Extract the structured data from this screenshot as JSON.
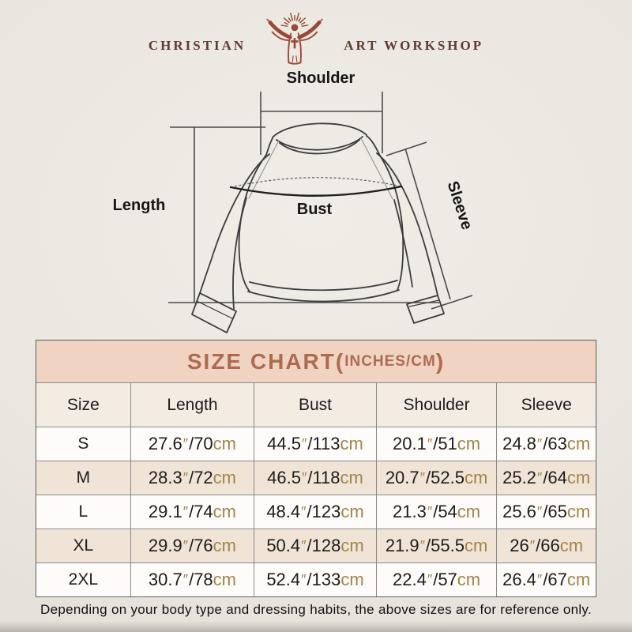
{
  "brand": {
    "left": "CHRISTIAN",
    "right": "ART WORKSHOP"
  },
  "diagram": {
    "shoulder": "Shoulder",
    "length": "Length",
    "bust": "Bust",
    "sleeve": "Sleeve"
  },
  "size_chart": {
    "title_main": "SIZE CHART(",
    "title_units": "INCHES/CM",
    "title_close": ")",
    "columns": [
      "Size",
      "Length",
      "Bust",
      "Shoulder",
      "Sleeve"
    ],
    "units": {
      "inch_mark": "″",
      "separator": "/",
      "cm": "cm"
    },
    "rows": [
      {
        "size": "S",
        "measures": [
          {
            "in": "27.6",
            "cm": "70"
          },
          {
            "in": "44.5",
            "cm": "113"
          },
          {
            "in": "20.1",
            "cm": "51"
          },
          {
            "in": "24.8",
            "cm": "63"
          }
        ]
      },
      {
        "size": "M",
        "measures": [
          {
            "in": "28.3",
            "cm": "72"
          },
          {
            "in": "46.5",
            "cm": "118"
          },
          {
            "in": "20.7",
            "cm": "52.5"
          },
          {
            "in": "25.2",
            "cm": "64"
          }
        ]
      },
      {
        "size": "L",
        "measures": [
          {
            "in": "29.1",
            "cm": "74"
          },
          {
            "in": "48.4",
            "cm": "123"
          },
          {
            "in": "21.3",
            "cm": "54"
          },
          {
            "in": "25.6",
            "cm": "65"
          }
        ]
      },
      {
        "size": "XL",
        "measures": [
          {
            "in": "29.9",
            "cm": "76"
          },
          {
            "in": "50.4",
            "cm": "128"
          },
          {
            "in": "21.9",
            "cm": "55.5"
          },
          {
            "in": "26",
            "cm": "66"
          }
        ]
      },
      {
        "size": "2XL",
        "measures": [
          {
            "in": "30.7",
            "cm": "78"
          },
          {
            "in": "52.4",
            "cm": "133"
          },
          {
            "in": "22.4",
            "cm": "57"
          },
          {
            "in": "26.4",
            "cm": "67"
          }
        ]
      }
    ]
  },
  "footer": {
    "disclaimer": "Depending on your body type and dressing habits, the above sizes are for reference only."
  },
  "colors": {
    "page_bg": "#ebe7e0",
    "title_bar_bg": "#f0d3c1",
    "title_text": "#ae6a51",
    "header_row_bg": "#f2ece3",
    "row_white": "#fdfcfa",
    "row_beige": "#f0e4d6",
    "unit_text": "#a5834a",
    "border_gray": "#8a8a8a",
    "logo_red": "#9c4736",
    "logo_text": "#5e3c30"
  },
  "chart_data": {
    "type": "table",
    "title": "SIZE CHART(INCHES/CM)",
    "columns": [
      "Size",
      "Length",
      "Bust",
      "Shoulder",
      "Sleeve"
    ],
    "rows": [
      [
        "S",
        "27.6\"/70cm",
        "44.5\"/113cm",
        "20.1\"/51cm",
        "24.8\"/63cm"
      ],
      [
        "M",
        "28.3\"/72cm",
        "46.5\"/118cm",
        "20.7\"/52.5cm",
        "25.2\"/64cm"
      ],
      [
        "L",
        "29.1\"/74cm",
        "48.4\"/123cm",
        "21.3\"/54cm",
        "25.6\"/65cm"
      ],
      [
        "XL",
        "29.9\"/76cm",
        "50.4\"/128cm",
        "21.9\"/55.5cm",
        "26\"/66cm"
      ],
      [
        "2XL",
        "30.7\"/78cm",
        "52.4\"/133cm",
        "22.4\"/57cm",
        "26.4\"/67cm"
      ]
    ]
  }
}
